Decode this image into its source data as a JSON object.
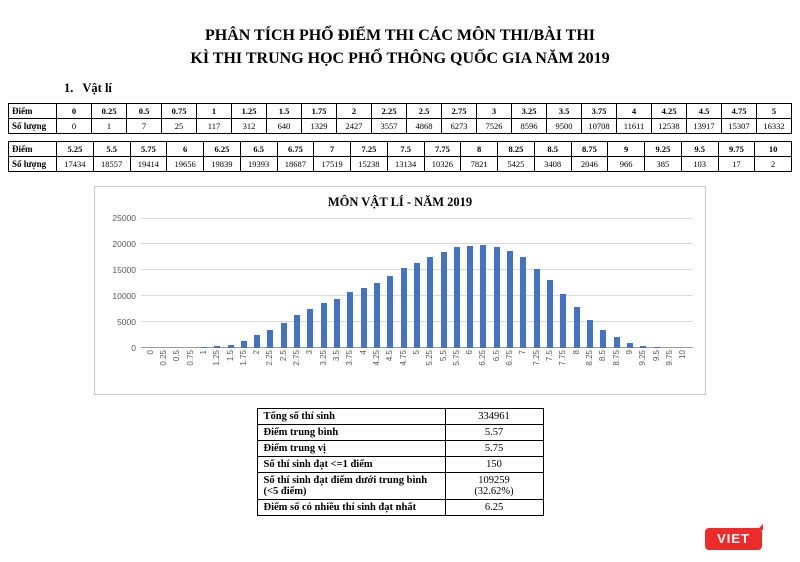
{
  "title": {
    "line1": "PHÂN TÍCH PHỔ ĐIỂM THI CÁC MÔN THI/BÀI THI",
    "line2": "KÌ THI TRUNG HỌC PHỔ THÔNG QUỐC GIA NĂM 2019"
  },
  "section": {
    "number": "1.",
    "label": "Vật lí"
  },
  "score_table": {
    "score_label": "Điểm",
    "count_label": "Số lượng",
    "part1": {
      "scores": [
        "0",
        "0.25",
        "0.5",
        "0.75",
        "1",
        "1.25",
        "1.5",
        "1.75",
        "2",
        "2.25",
        "2.5",
        "2.75",
        "3",
        "3.25",
        "3.5",
        "3.75",
        "4",
        "4.25",
        "4.5",
        "4.75",
        "5"
      ],
      "counts": [
        "0",
        "1",
        "7",
        "25",
        "117",
        "312",
        "640",
        "1329",
        "2427",
        "3557",
        "4868",
        "6273",
        "7526",
        "8596",
        "9500",
        "10708",
        "11611",
        "12538",
        "13917",
        "15307",
        "16332"
      ]
    },
    "part2": {
      "scores": [
        "5.25",
        "5.5",
        "5.75",
        "6",
        "6.25",
        "6.5",
        "6.75",
        "7",
        "7.25",
        "7.5",
        "7.75",
        "8",
        "8.25",
        "8.5",
        "8.75",
        "9",
        "9.25",
        "9.5",
        "9.75",
        "10"
      ],
      "counts": [
        "17434",
        "18557",
        "19414",
        "19656",
        "19839",
        "19393",
        "18687",
        "17519",
        "15238",
        "13134",
        "10326",
        "7821",
        "5425",
        "3408",
        "2046",
        "966",
        "385",
        "103",
        "17",
        "2"
      ]
    }
  },
  "chart_data": {
    "type": "bar",
    "title": "MÔN VẬT LÍ - NĂM 2019",
    "categories": [
      "0",
      "0.25",
      "0.5",
      "0.75",
      "1",
      "1.25",
      "1.5",
      "1.75",
      "2",
      "2.25",
      "2.5",
      "2.75",
      "3",
      "3.25",
      "3.5",
      "3.75",
      "4",
      "4.25",
      "4.5",
      "4.75",
      "5",
      "5.25",
      "5.5",
      "5.75",
      "6",
      "6.25",
      "6.5",
      "6.75",
      "7",
      "7.25",
      "7.5",
      "7.75",
      "8",
      "8.25",
      "8.5",
      "8.75",
      "9",
      "9.25",
      "9.5",
      "9.75",
      "10"
    ],
    "values": [
      0,
      1,
      7,
      25,
      117,
      312,
      640,
      1329,
      2427,
      3557,
      4868,
      6273,
      7526,
      8596,
      9500,
      10708,
      11611,
      12538,
      13917,
      15307,
      16332,
      17434,
      18557,
      19414,
      19656,
      19839,
      19393,
      18687,
      17519,
      15238,
      13134,
      10326,
      7821,
      5425,
      3408,
      2046,
      966,
      385,
      103,
      17,
      2
    ],
    "xlabel": "",
    "ylabel": "",
    "ylim": [
      0,
      25000
    ],
    "yticks": [
      0,
      5000,
      10000,
      15000,
      20000,
      25000
    ],
    "grid": true,
    "legend": false,
    "bar_color": "#4472c4"
  },
  "summary_table": {
    "rows": [
      {
        "label": "Tổng số thí sinh",
        "value": "334961"
      },
      {
        "label": "Điểm trung bình",
        "value": "5.57"
      },
      {
        "label": "Điểm trung vị",
        "value": "5.75"
      },
      {
        "label": "Số thí sinh đạt <=1 điểm",
        "value": "150"
      },
      {
        "label": "Số thí sinh đạt điểm dưới trung bình (<5 điểm)",
        "value": "109259\n(32.62%)"
      },
      {
        "label": "Điểm số có nhiều thí sinh đạt nhất",
        "value": "6.25"
      }
    ]
  },
  "logo": {
    "text": "VIET",
    "color": "#ee2b2b"
  }
}
